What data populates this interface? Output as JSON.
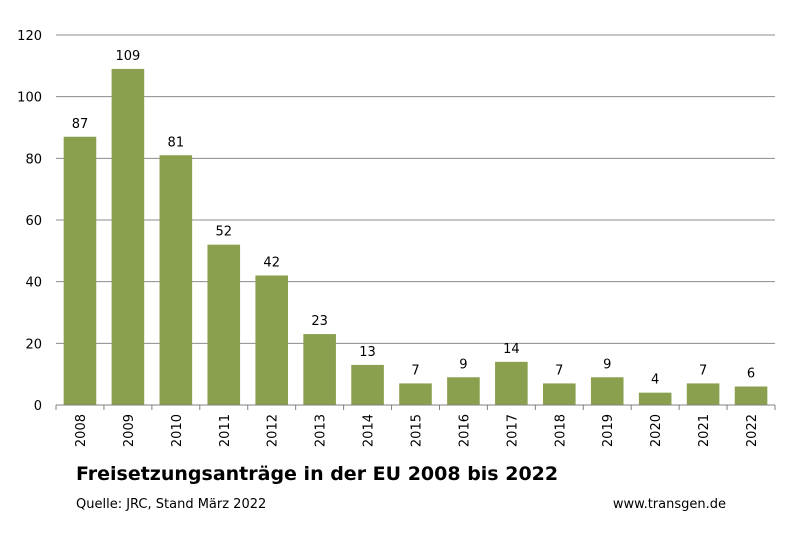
{
  "chart_data": {
    "type": "bar",
    "title": "Freisetzungsanträge in der EU 2008 bis 2022",
    "categories": [
      "2008",
      "2009",
      "2010",
      "2011",
      "2012",
      "2013",
      "2014",
      "2015",
      "2016",
      "2017",
      "2018",
      "2019",
      "2020",
      "2021",
      "2022"
    ],
    "values": [
      87,
      109,
      81,
      52,
      42,
      23,
      13,
      7,
      9,
      14,
      7,
      9,
      4,
      7,
      6
    ],
    "ylim": [
      0,
      120
    ],
    "yticks": [
      0,
      20,
      40,
      60,
      80,
      100,
      120
    ],
    "xlabel": "",
    "ylabel": "",
    "grid": true,
    "legend": "none",
    "data_labels": true,
    "bar_color": "#8aa04f",
    "grid_color": "#8c8c8c"
  },
  "footer": {
    "source": "Quelle: JRC, Stand März 2022",
    "website": "www.transgen.de"
  }
}
